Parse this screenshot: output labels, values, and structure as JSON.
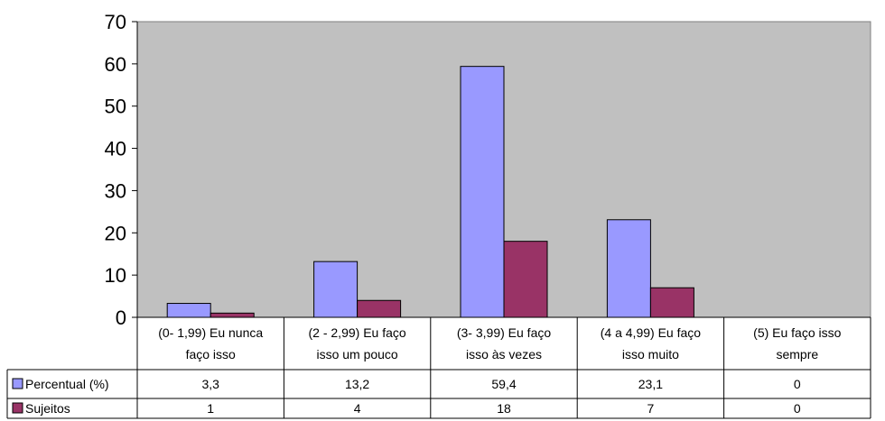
{
  "chart_data": {
    "type": "bar",
    "categories": [
      [
        "(0- 1,99) Eu nunca",
        "faço isso"
      ],
      [
        "(2 - 2,99) Eu faço",
        "isso um pouco"
      ],
      [
        "(3- 3,99) Eu faço",
        "isso às vezes"
      ],
      [
        "(4 a 4,99) Eu faço",
        "isso muito"
      ],
      [
        "(5) Eu faço isso",
        "sempre"
      ]
    ],
    "series": [
      {
        "name": "Percentual (%)",
        "values": [
          3.3,
          13.2,
          59.4,
          23.1,
          0
        ],
        "labels": [
          "3,3",
          "13,2",
          "59,4",
          "23,1",
          "0"
        ],
        "color": "#9999ff"
      },
      {
        "name": "Sujeitos",
        "values": [
          1,
          4,
          18,
          7,
          0
        ],
        "labels": [
          "1",
          "4",
          "18",
          "7",
          "0"
        ],
        "color": "#993366"
      }
    ],
    "ylim": [
      0,
      70
    ],
    "yticks": [
      "0",
      "10",
      "20",
      "30",
      "40",
      "50",
      "60",
      "70"
    ],
    "plot_background": "#c0c0c0",
    "grid": false,
    "legend": "data-table"
  }
}
